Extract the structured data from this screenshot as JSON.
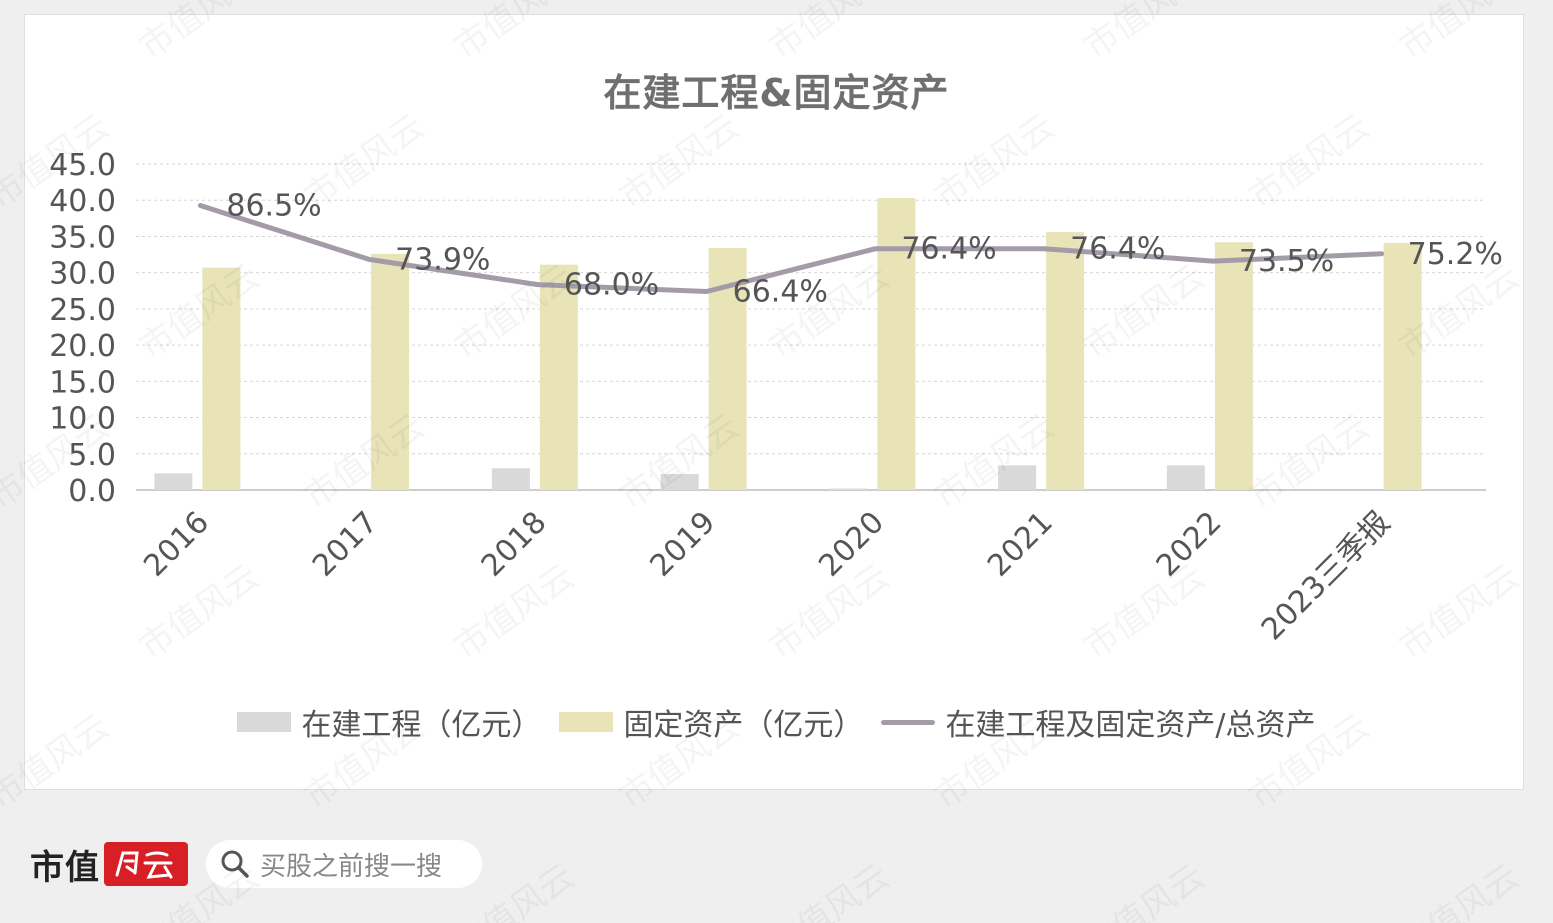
{
  "title": "在建工程&固定资产",
  "colors": {
    "construction": "#d9d9d9",
    "fixed_assets": "#e8e4b8",
    "ratio_line": "#a49ba8",
    "brand_red": "#d81f26"
  },
  "legend": {
    "construction": "在建工程（亿元）",
    "fixed_assets": "固定资产（亿元）",
    "ratio": "在建工程及固定资产/总资产"
  },
  "chart_data": {
    "type": "bar",
    "categories": [
      "2016",
      "2017",
      "2018",
      "2019",
      "2020",
      "2021",
      "2022",
      "2023三季报"
    ],
    "series": [
      {
        "name": "在建工程（亿元）",
        "type": "bar",
        "values": [
          2.3,
          0.0,
          3.0,
          2.2,
          0.2,
          3.4,
          3.4,
          0.0
        ]
      },
      {
        "name": "固定资产（亿元）",
        "type": "bar",
        "values": [
          30.7,
          32.6,
          31.1,
          33.4,
          40.3,
          35.6,
          34.2,
          34.1
        ]
      },
      {
        "name": "在建工程及固定资产/总资产",
        "type": "line",
        "values": [
          86.5,
          73.9,
          68.0,
          66.4,
          76.4,
          76.4,
          73.5,
          75.2
        ],
        "labels": [
          "86.5%",
          "73.9%",
          "68.0%",
          "66.4%",
          "76.4%",
          "76.4%",
          "73.5%",
          "75.2%"
        ]
      }
    ],
    "ylim": [
      0,
      45
    ],
    "yticks": [
      "45.0",
      "40.0",
      "35.0",
      "30.0",
      "25.0",
      "20.0",
      "15.0",
      "10.0",
      "5.0",
      "0.0"
    ],
    "grid": true,
    "legend_position": "bottom"
  },
  "footer": {
    "brand": "市值",
    "brand_badge_icon": "fengyun-logo",
    "search_icon": "search-icon",
    "search_placeholder": "买股之前搜一搜"
  },
  "watermark": "市值风云"
}
